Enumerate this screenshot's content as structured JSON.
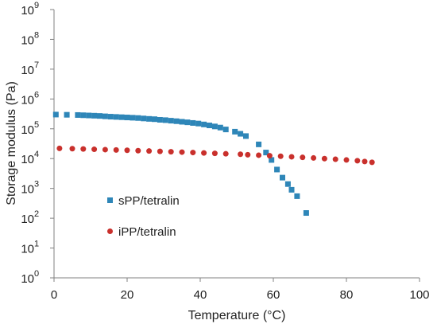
{
  "chart_data": {
    "type": "scatter",
    "xlabel": "Temperature (°C)",
    "ylabel": "Storage modulus (Pa)",
    "xlim": [
      0,
      100
    ],
    "ylim": [
      1,
      1000000000
    ],
    "yscale": "log",
    "x_ticks": [
      "0",
      "20",
      "40",
      "60",
      "80",
      "100"
    ],
    "y_ticks": [
      "10",
      "10",
      "10",
      "10",
      "10",
      "10",
      "10",
      "10",
      "10",
      "10"
    ],
    "y_tick_exponents": [
      "0",
      "1",
      "2",
      "3",
      "4",
      "5",
      "6",
      "7",
      "8",
      "9"
    ],
    "grid": false,
    "legend_position": "left",
    "series": [
      {
        "name": "sPP/tetralin",
        "marker": "square",
        "color": "#2e86b8",
        "points": [
          [
            0.5,
            300000
          ],
          [
            3.5,
            295000
          ],
          [
            6.5,
            290000
          ],
          [
            8,
            285000
          ],
          [
            9.5,
            280000
          ],
          [
            11,
            275000
          ],
          [
            12.5,
            270000
          ],
          [
            14,
            262000
          ],
          [
            15.5,
            255000
          ],
          [
            17,
            250000
          ],
          [
            18.5,
            245000
          ],
          [
            20,
            240000
          ],
          [
            21.5,
            235000
          ],
          [
            23,
            230000
          ],
          [
            24.5,
            222000
          ],
          [
            26,
            215000
          ],
          [
            27.5,
            210000
          ],
          [
            29,
            200000
          ],
          [
            30.5,
            195000
          ],
          [
            32,
            187000
          ],
          [
            33.5,
            180000
          ],
          [
            35,
            172000
          ],
          [
            36.5,
            165000
          ],
          [
            38,
            157000
          ],
          [
            39.5,
            150000
          ],
          [
            41,
            140000
          ],
          [
            42.5,
            130000
          ],
          [
            44,
            120000
          ],
          [
            45.5,
            110000
          ],
          [
            47,
            95000
          ],
          [
            49.5,
            80000
          ],
          [
            51,
            68000
          ],
          [
            52.5,
            57000
          ],
          [
            56,
            30000
          ],
          [
            58,
            16000
          ],
          [
            59.5,
            9000
          ],
          [
            61,
            4300
          ],
          [
            62.5,
            2300
          ],
          [
            64,
            1400
          ],
          [
            65,
            900
          ],
          [
            66.5,
            550
          ],
          [
            69,
            150
          ]
        ]
      },
      {
        "name": "iPP/tetralin",
        "marker": "circle",
        "color": "#c9302c",
        "points": [
          [
            1.5,
            22000
          ],
          [
            5,
            21500
          ],
          [
            8,
            21000
          ],
          [
            11,
            20500
          ],
          [
            14,
            20000
          ],
          [
            17,
            19500
          ],
          [
            20,
            19000
          ],
          [
            23,
            18500
          ],
          [
            26,
            18000
          ],
          [
            29,
            17500
          ],
          [
            32,
            17000
          ],
          [
            35,
            16500
          ],
          [
            38,
            16000
          ],
          [
            41,
            15500
          ],
          [
            44,
            15000
          ],
          [
            47,
            14500
          ],
          [
            51,
            14000
          ],
          [
            53,
            13500
          ],
          [
            56,
            13000
          ],
          [
            59,
            12500
          ],
          [
            62,
            12000
          ],
          [
            65,
            11500
          ],
          [
            68,
            11000
          ],
          [
            71,
            10500
          ],
          [
            74,
            10000
          ],
          [
            77,
            9500
          ],
          [
            80,
            9000
          ],
          [
            83,
            8500
          ],
          [
            85,
            8000
          ],
          [
            87,
            7500
          ]
        ]
      }
    ]
  }
}
